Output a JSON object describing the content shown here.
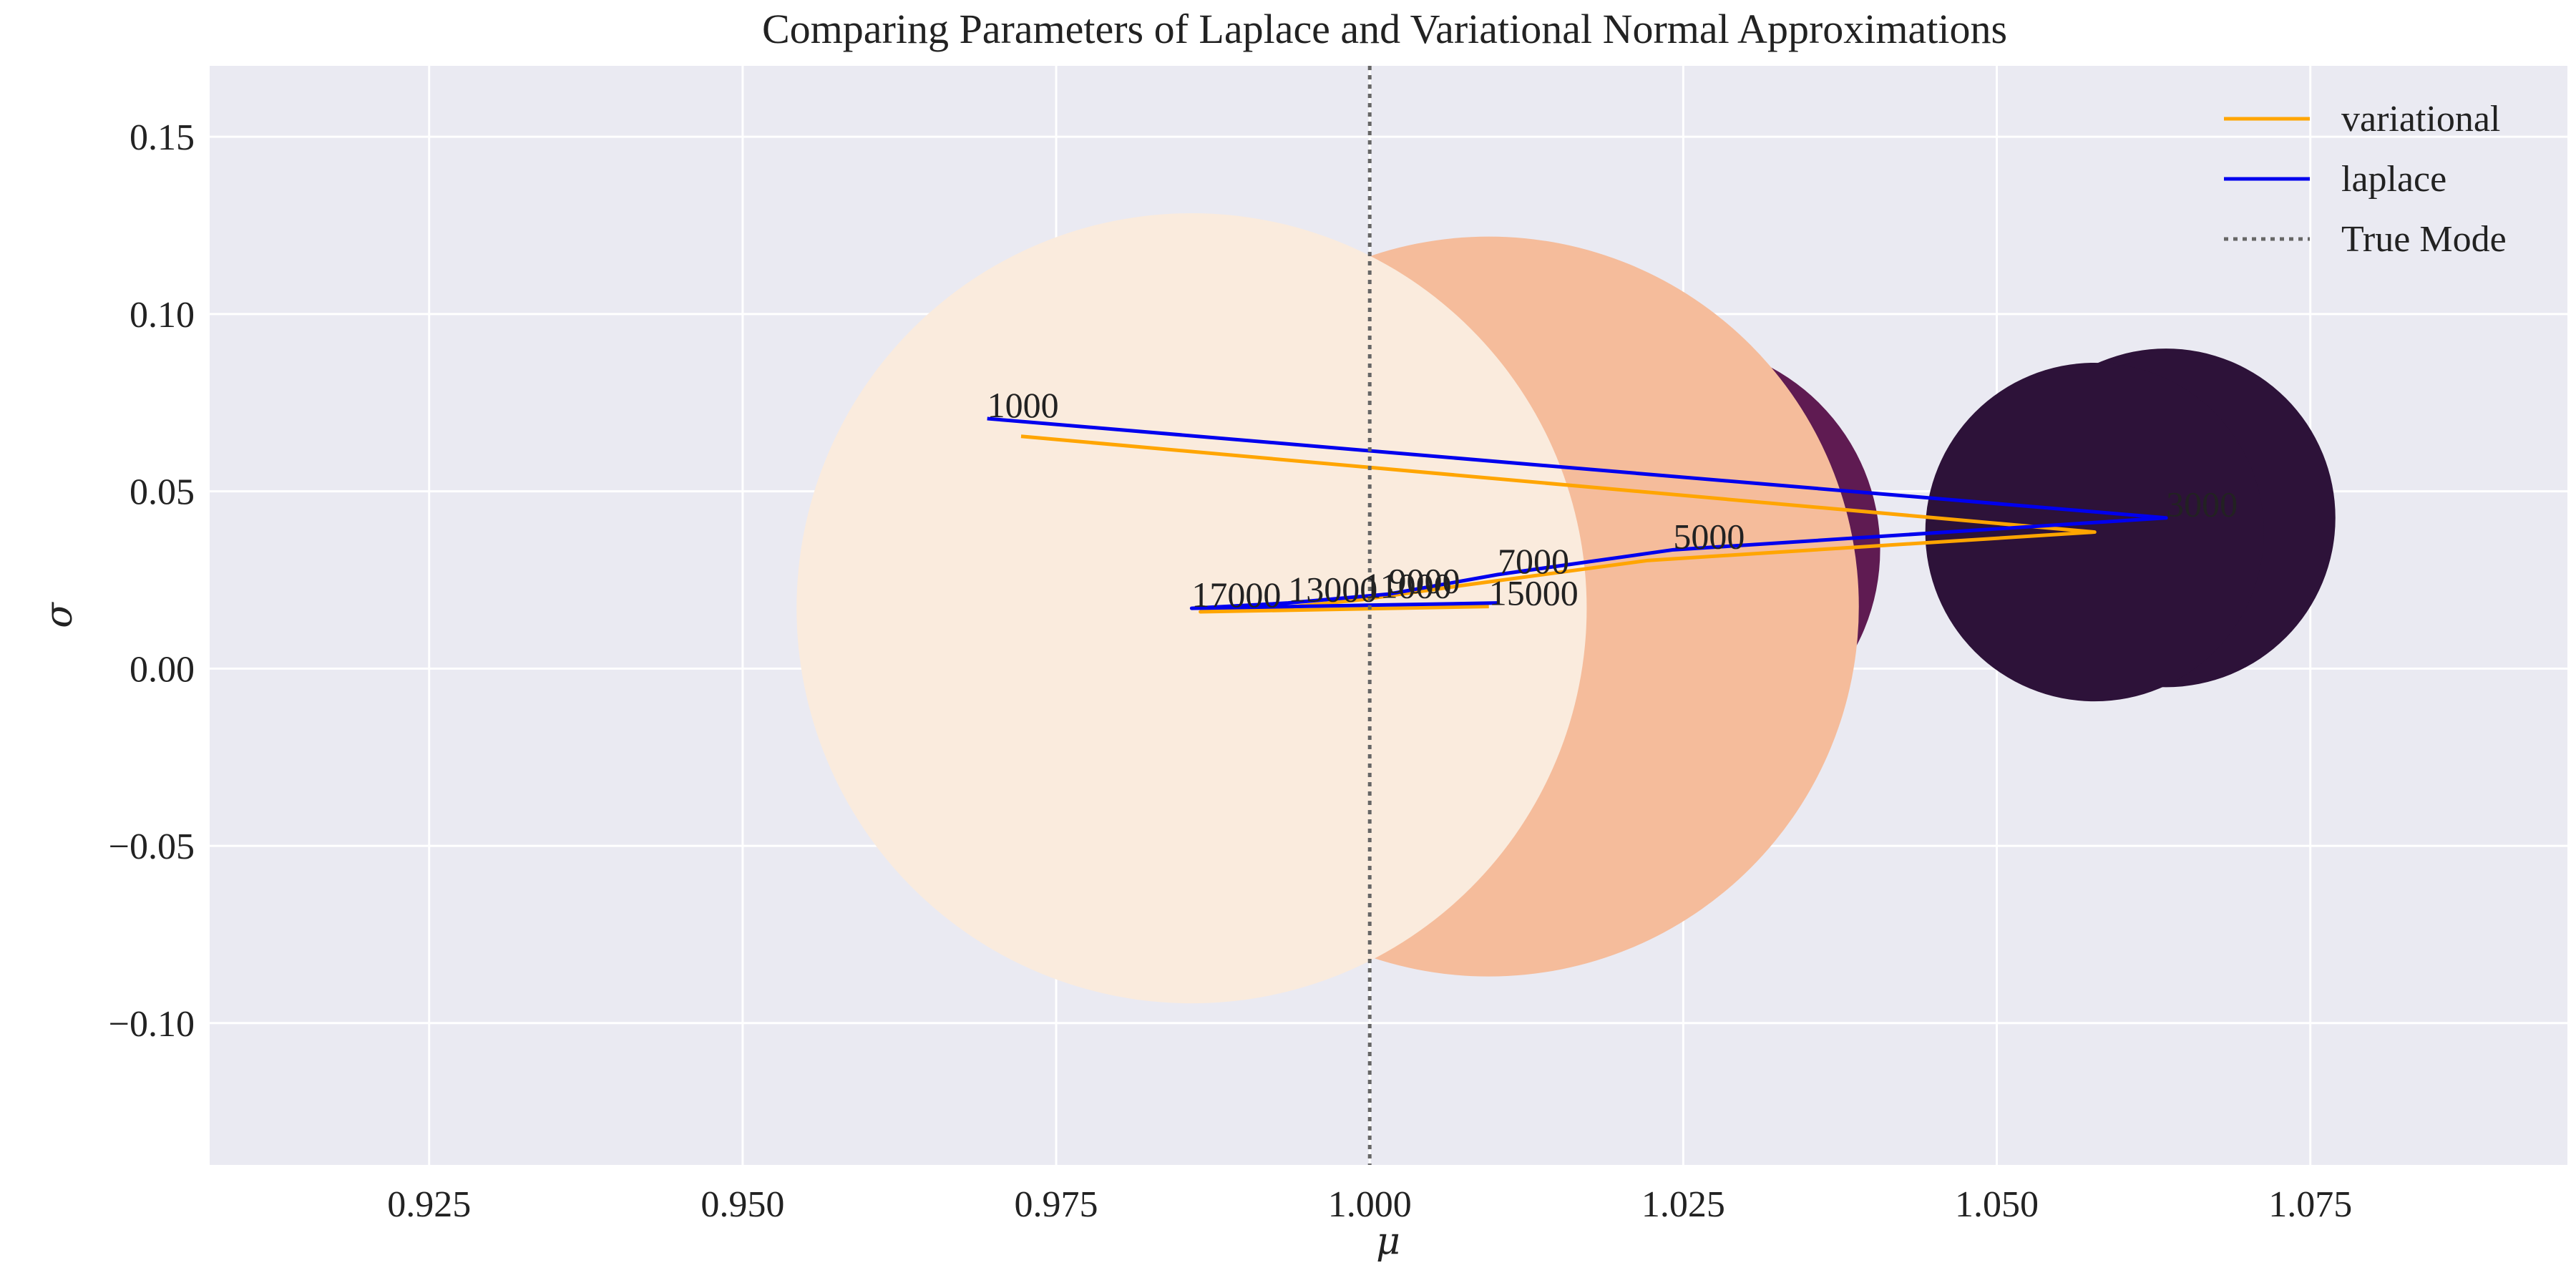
{
  "chart_data": {
    "type": "scatter",
    "title": "Comparing Parameters of Laplace and Variational Normal Approximations",
    "xlabel": "μ",
    "ylabel": "σ",
    "xlim": [
      0.9075,
      1.0955
    ],
    "ylim": [
      -0.14,
      0.17
    ],
    "xticks": [
      0.925,
      0.95,
      0.975,
      1.0,
      1.025,
      1.05,
      1.075
    ],
    "xtick_labels": [
      "0.925",
      "0.950",
      "0.975",
      "1.000",
      "1.025",
      "1.050",
      "1.075"
    ],
    "yticks": [
      -0.1,
      -0.05,
      0.0,
      0.05,
      0.1,
      0.15
    ],
    "ytick_labels": [
      "−0.10",
      "−0.05",
      "0.00",
      "0.05",
      "0.10",
      "0.15"
    ],
    "grid": true,
    "background": "#EAEAF2",
    "true_mode": 1.0,
    "series": [
      {
        "name": "variational",
        "color": "#FFA500",
        "x": [
          0.9722,
          1.0578,
          1.0222,
          1.0075,
          0.9995,
          0.9925,
          0.9865,
          1.0095
        ],
        "y": [
          0.0655,
          0.0385,
          0.0305,
          0.0235,
          0.0195,
          0.017,
          0.016,
          0.0175
        ]
      },
      {
        "name": "laplace",
        "color": "#0000EE",
        "x": [
          0.9695,
          1.0635,
          1.0242,
          1.0102,
          1.0015,
          0.9935,
          0.9858,
          1.0102
        ],
        "y": [
          0.0705,
          0.0425,
          0.0335,
          0.0265,
          0.021,
          0.0185,
          0.017,
          0.0185
        ]
      }
    ],
    "points": [
      {
        "label": "1000",
        "x": 0.9695,
        "y": 0.0705,
        "size": 0.0066,
        "color": "#05030F"
      },
      {
        "label": "",
        "x": 0.9722,
        "y": 0.0655,
        "size": 0.0066,
        "color": "#05030F"
      },
      {
        "label": "3000",
        "x": 1.0635,
        "y": 0.0425,
        "size": 0.0135,
        "color": "#2D1239"
      },
      {
        "label": "",
        "x": 1.0578,
        "y": 0.0385,
        "size": 0.0135,
        "color": "#2D1239"
      },
      {
        "label": "5000",
        "x": 1.0242,
        "y": 0.0335,
        "size": 0.0165,
        "color": "#5F1B52"
      },
      {
        "label": "7000",
        "x": 1.0102,
        "y": 0.0265,
        "size": 0.0205,
        "color": "#EE5A3F"
      },
      {
        "label": "9000",
        "x": 1.0015,
        "y": 0.021,
        "size": 0.022,
        "color": "#F4845F"
      },
      {
        "label": "11000",
        "x": 0.9995,
        "y": 0.0195,
        "size": 0.0235,
        "color": "#F6A277"
      },
      {
        "label": "13000",
        "x": 0.9935,
        "y": 0.0185,
        "size": 0.026,
        "color": "#F7B896"
      },
      {
        "label": "15000",
        "x": 1.0095,
        "y": 0.0175,
        "size": 0.0295,
        "color": "#F5BC9B"
      },
      {
        "label": "17000",
        "x": 0.9858,
        "y": 0.017,
        "size": 0.0315,
        "color": "#FAEBDD"
      }
    ],
    "legend": {
      "position": "top-right",
      "entries": [
        {
          "label": "variational",
          "color": "#FFA500",
          "style": "solid"
        },
        {
          "label": "laplace",
          "color": "#0000EE",
          "style": "solid"
        },
        {
          "label": "True Mode",
          "color": "#666666",
          "style": "dotted"
        }
      ]
    }
  }
}
